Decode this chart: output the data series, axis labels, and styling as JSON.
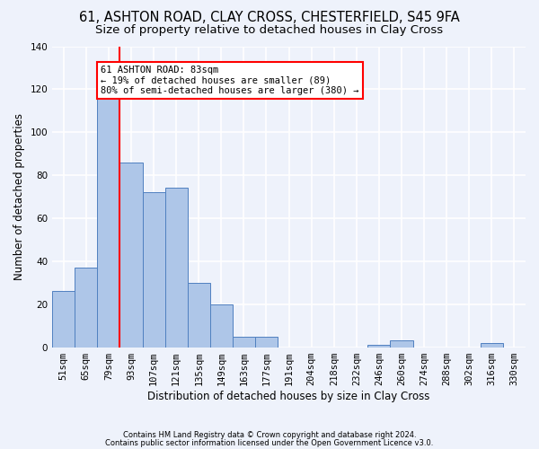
{
  "title_line1": "61, ASHTON ROAD, CLAY CROSS, CHESTERFIELD, S45 9FA",
  "title_line2": "Size of property relative to detached houses in Clay Cross",
  "xlabel": "Distribution of detached houses by size in Clay Cross",
  "ylabel": "Number of detached properties",
  "footer_line1": "Contains HM Land Registry data © Crown copyright and database right 2024.",
  "footer_line2": "Contains public sector information licensed under the Open Government Licence v3.0.",
  "bin_labels": [
    "51sqm",
    "65sqm",
    "79sqm",
    "93sqm",
    "107sqm",
    "121sqm",
    "135sqm",
    "149sqm",
    "163sqm",
    "177sqm",
    "191sqm",
    "204sqm",
    "218sqm",
    "232sqm",
    "246sqm",
    "260sqm",
    "274sqm",
    "288sqm",
    "302sqm",
    "316sqm",
    "330sqm"
  ],
  "bar_values": [
    26,
    37,
    118,
    86,
    72,
    74,
    30,
    20,
    5,
    5,
    0,
    0,
    0,
    0,
    1,
    3,
    0,
    0,
    0,
    2,
    0
  ],
  "bar_color": "#aec6e8",
  "bar_edge_color": "#5080c0",
  "vline_color": "red",
  "vline_index": 2,
  "annotation_text": "61 ASHTON ROAD: 83sqm\n← 19% of detached houses are smaller (89)\n80% of semi-detached houses are larger (380) →",
  "annotation_box_color": "white",
  "annotation_box_edge_color": "red",
  "ylim": [
    0,
    140
  ],
  "yticks": [
    0,
    20,
    40,
    60,
    80,
    100,
    120,
    140
  ],
  "background_color": "#eef2fb",
  "grid_color": "white",
  "title_fontsize": 10.5,
  "subtitle_fontsize": 9.5,
  "axis_label_fontsize": 8.5,
  "tick_fontsize": 7.5,
  "annot_fontsize": 7.5
}
